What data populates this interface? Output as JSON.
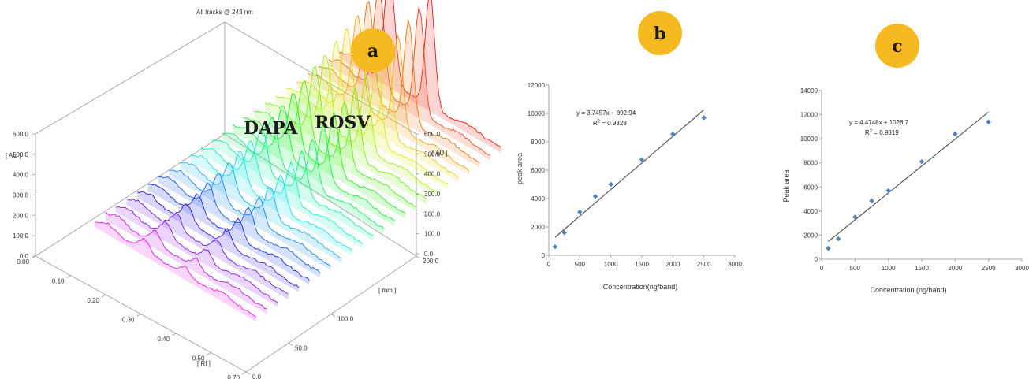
{
  "chart_data": [
    {
      "type": "area",
      "badge": "a",
      "title": "All tracks @ 243 nm",
      "peak_labels": [
        "DAPA",
        "ROSV"
      ],
      "left_unit": "[ AU ]",
      "right_unit": "[ AU ]",
      "left_ticks": [
        "0.0",
        "100.0",
        "200.0",
        "300.0",
        "400.0",
        "500.0",
        "600.0"
      ],
      "right_ticks": [
        "0.0",
        "100.0",
        "200.0",
        "300.0",
        "400.0",
        "500.0",
        "600.0"
      ],
      "rf_unit": "[ Rf ]",
      "rf_ticks": [
        "0.00",
        "0.10",
        "0.20",
        "0.30",
        "0.40",
        "0.50",
        "0.70"
      ],
      "mm_unit": "[ mm ]",
      "mm_ticks": [
        "0.0",
        "50.0",
        "100.0",
        "200.0"
      ],
      "track_count": 24,
      "peaks_rf": [
        0.31,
        0.56
      ],
      "ylim": [
        0,
        600
      ]
    },
    {
      "type": "scatter",
      "badge": "b",
      "xlabel": "Concentration(ng/band)",
      "ylabel": "peak area",
      "xlim": [
        0,
        3000
      ],
      "ylim": [
        0,
        12000
      ],
      "xticks": [
        0,
        500,
        1000,
        1500,
        2000,
        2500,
        3000
      ],
      "yticks": [
        0,
        2000,
        4000,
        6000,
        8000,
        10000,
        12000
      ],
      "x": [
        100,
        250,
        500,
        750,
        1000,
        1500,
        2000,
        2500
      ],
      "y": [
        600,
        1600,
        3050,
        4150,
        5000,
        6750,
        8550,
        9700
      ],
      "equation": "y = 3.7457x + 892.94",
      "r2_label": "R",
      "r2_value": " = 0.9828",
      "slope": 3.7457,
      "intercept": 892.94
    },
    {
      "type": "scatter",
      "badge": "c",
      "xlabel": "Concentration (ng/band)",
      "ylabel": "Peak area",
      "xlim": [
        0,
        3000
      ],
      "ylim": [
        0,
        14000
      ],
      "xticks": [
        0,
        500,
        1000,
        1500,
        2000,
        2500,
        3000
      ],
      "yticks": [
        0,
        2000,
        4000,
        6000,
        8000,
        10000,
        12000,
        14000
      ],
      "x": [
        100,
        250,
        500,
        750,
        1000,
        1500,
        2000,
        2500
      ],
      "y": [
        900,
        1700,
        3500,
        4850,
        5700,
        8100,
        10400,
        11400
      ],
      "equation": "y = 4.4748x + 1028.7",
      "r2_label": "R",
      "r2_value": " = 0.9819",
      "slope": 4.4748,
      "intercept": 1028.7
    }
  ],
  "colors": {
    "badge": "#f5b921",
    "marker": "#4f81bd",
    "line": "#404040"
  }
}
